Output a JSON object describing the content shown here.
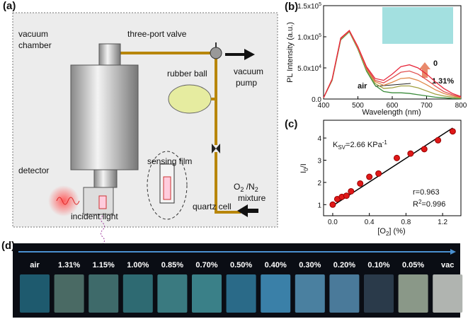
{
  "panel_a": {
    "panel": "(a)",
    "labels": {
      "chamber_1": "vacuum",
      "chamber_2": "chamber",
      "valve": "three-port valve",
      "pump_1": "vacuum",
      "pump_2": "pump",
      "ball": "rubber ball",
      "film": "sensing film",
      "detector": "detector",
      "mixture": [
        "O",
        "2",
        " /N",
        "2"
      ],
      "mixture_2": "mixture",
      "cell": "quartz cell",
      "light": "incident light"
    }
  },
  "chart_data": [
    {
      "type": "line",
      "panel": "(b)",
      "x_label": "Wavelength (nm)",
      "y_label": "PL Intensity (a.u.)",
      "x": [
        400,
        425,
        450,
        475,
        500,
        525,
        550,
        575,
        600,
        625,
        650,
        675,
        700,
        725,
        750,
        775,
        800
      ],
      "series": [
        {
          "color": "#3c8c3c",
          "values": [
            2000,
            30000,
            95000,
            108000,
            80000,
            45000,
            22000,
            12000,
            10000,
            10000,
            9000,
            7000,
            5000,
            3000,
            2000,
            1000,
            500
          ]
        },
        {
          "color": "#a0a040",
          "values": [
            2000,
            31000,
            96000,
            109000,
            81000,
            47000,
            25000,
            17000,
            18000,
            21000,
            21000,
            18000,
            13000,
            8000,
            5000,
            3000,
            1500
          ]
        },
        {
          "color": "#e08a4a",
          "values": [
            2000,
            31000,
            97000,
            109000,
            82000,
            49000,
            28000,
            22000,
            27000,
            33000,
            34000,
            30000,
            23000,
            15000,
            9000,
            5000,
            2500
          ]
        },
        {
          "color": "#e05050",
          "values": [
            2000,
            32000,
            97000,
            110000,
            83000,
            50000,
            30000,
            26000,
            34000,
            43000,
            45000,
            40000,
            31000,
            21000,
            12000,
            7000,
            3000
          ]
        },
        {
          "color": "#e8283c",
          "values": [
            2000,
            32000,
            98000,
            110000,
            84000,
            52000,
            33000,
            30000,
            40000,
            52000,
            55000,
            50000,
            40000,
            28000,
            17000,
            9000,
            4000
          ]
        }
      ],
      "xlim": [
        400,
        800
      ],
      "xticks": [
        400,
        500,
        600,
        700,
        800
      ],
      "ylim": [
        0,
        150000
      ],
      "yticks": [
        {
          "value": 0,
          "label": "0.0"
        },
        {
          "value": 50000,
          "label": "5.0x10",
          "exponent": "4"
        },
        {
          "value": 100000,
          "label": "1.0x10",
          "exponent": "5"
        },
        {
          "value": 150000,
          "label": "1.5x10",
          "exponent": "5"
        }
      ],
      "annotations": {
        "top": "0",
        "bottom": "1.31%",
        "air": "air"
      }
    },
    {
      "type": "scatter",
      "panel": "(c)",
      "x_label": [
        "[O",
        "2",
        "] (%)"
      ],
      "y_label": [
        "I",
        "0",
        "/I"
      ],
      "x": [
        0,
        0.05,
        0.1,
        0.15,
        0.2,
        0.3,
        0.4,
        0.5,
        0.7,
        0.85,
        1.0,
        1.15,
        1.31
      ],
      "values": [
        1.0,
        1.25,
        1.35,
        1.4,
        1.6,
        1.95,
        2.25,
        2.4,
        3.1,
        3.3,
        3.5,
        3.9,
        4.3
      ],
      "color": "#e01818",
      "fit_line": {
        "x": [
          0,
          1.31
        ],
        "values": [
          0.95,
          4.45
        ],
        "color": "#000000"
      },
      "xlim": [
        -0.1,
        1.4
      ],
      "xticks": [
        {
          "value": 0,
          "label": "0.0"
        },
        0.4,
        0.8,
        1.2
      ],
      "ylim": [
        0.5,
        4.8
      ],
      "yticks": [
        1,
        2,
        3,
        4
      ],
      "annotations": {
        "ksv": [
          "K",
          "SV",
          "=2.66 KPa",
          "-1"
        ],
        "r": "r=0.963",
        "r2": [
          "R",
          "2",
          "=0.996"
        ]
      }
    }
  ],
  "panel_d": {
    "panel": "(d)",
    "labels": [
      "air",
      "1.31%",
      "1.15%",
      "1.00%",
      "0.85%",
      "0.70%",
      "0.50%",
      "0.40%",
      "0.30%",
      "0.20%",
      "0.10%",
      "0.05%",
      "vac"
    ],
    "colors": [
      "#1e5a6e",
      "#4a6a64",
      "#3e6a6a",
      "#2e6a72",
      "#3a7a80",
      "#3a8088",
      "#2a6a88",
      "#3a80a8",
      "#4a80a0",
      "#4a7a9a",
      "#2a3a4a",
      "#8a9888",
      "#b0b4b0"
    ]
  }
}
